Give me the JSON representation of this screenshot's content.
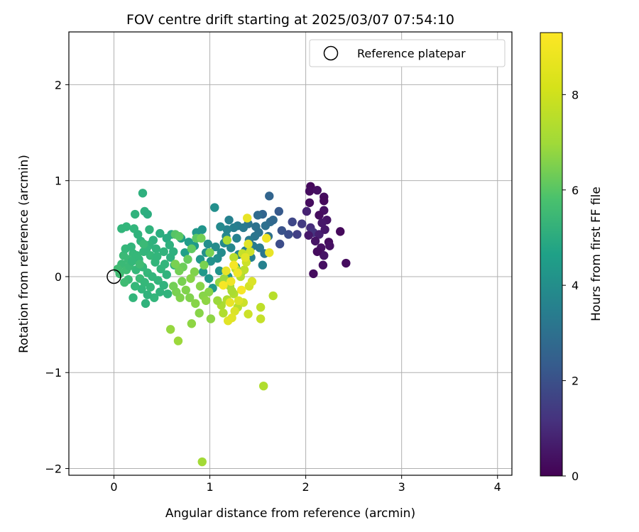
{
  "chart_data": {
    "type": "scatter",
    "title": "FOV centre drift starting at 2025/03/07 07:54:10",
    "xlabel": "Angular distance from reference (arcmin)",
    "ylabel": "Rotation from reference (arcmin)",
    "xlim": [
      -0.47,
      4.15
    ],
    "ylim": [
      -2.07,
      2.55
    ],
    "xticks": [
      0,
      1,
      2,
      3,
      4
    ],
    "yticks": [
      -2,
      -1,
      0,
      1,
      2
    ],
    "xtick_labels": [
      "0",
      "1",
      "2",
      "3",
      "4"
    ],
    "ytick_labels": [
      "−2",
      "−1",
      "0",
      "1",
      "2"
    ],
    "grid": true,
    "legend": {
      "placement": "top-right",
      "entries": [
        "Reference platepar"
      ]
    },
    "reference_point": {
      "x": 0,
      "y": 0,
      "label": "Reference platepar"
    },
    "colorbar": {
      "label": "Hours from first FF file",
      "colormap": "viridis",
      "range": [
        0,
        9.3
      ],
      "ticks": [
        0,
        2,
        4,
        6,
        8
      ],
      "tick_labels": [
        "0",
        "2",
        "4",
        "6",
        "8"
      ]
    },
    "points": [
      {
        "x": 2.05,
        "y": 0.94,
        "c": 0.2
      },
      {
        "x": 2.04,
        "y": 0.89,
        "c": 0.3
      },
      {
        "x": 2.12,
        "y": 0.9,
        "c": 0.4
      },
      {
        "x": 2.19,
        "y": 0.83,
        "c": 0.3
      },
      {
        "x": 2.19,
        "y": 0.79,
        "c": 0.2
      },
      {
        "x": 2.04,
        "y": 0.77,
        "c": 0.3
      },
      {
        "x": 2.19,
        "y": 0.69,
        "c": 0.4
      },
      {
        "x": 2.14,
        "y": 0.64,
        "c": 0.3
      },
      {
        "x": 2.22,
        "y": 0.59,
        "c": 0.5
      },
      {
        "x": 2.17,
        "y": 0.56,
        "c": 0.6
      },
      {
        "x": 2.01,
        "y": 0.68,
        "c": 0.9
      },
      {
        "x": 2.05,
        "y": 0.51,
        "c": 1.2
      },
      {
        "x": 2.08,
        "y": 0.46,
        "c": 1.4
      },
      {
        "x": 2.14,
        "y": 0.44,
        "c": 0.8
      },
      {
        "x": 2.2,
        "y": 0.49,
        "c": 0.6
      },
      {
        "x": 2.1,
        "y": 0.37,
        "c": 0.5
      },
      {
        "x": 2.16,
        "y": 0.3,
        "c": 0.4
      },
      {
        "x": 2.24,
        "y": 0.36,
        "c": 0.3
      },
      {
        "x": 2.25,
        "y": 0.32,
        "c": 0.4
      },
      {
        "x": 2.19,
        "y": 0.22,
        "c": 0.5
      },
      {
        "x": 2.12,
        "y": 0.26,
        "c": 0.3
      },
      {
        "x": 2.18,
        "y": 0.12,
        "c": 0.4
      },
      {
        "x": 2.08,
        "y": 0.03,
        "c": 0.3
      },
      {
        "x": 2.36,
        "y": 0.47,
        "c": 0.2
      },
      {
        "x": 2.42,
        "y": 0.14,
        "c": 0.3
      },
      {
        "x": 2.03,
        "y": 0.43,
        "c": 0.6
      },
      {
        "x": 1.96,
        "y": 0.55,
        "c": 1.6
      },
      {
        "x": 1.91,
        "y": 0.44,
        "c": 1.8
      },
      {
        "x": 1.86,
        "y": 0.57,
        "c": 2.0
      },
      {
        "x": 1.82,
        "y": 0.44,
        "c": 2.2
      },
      {
        "x": 1.75,
        "y": 0.48,
        "c": 2.4
      },
      {
        "x": 1.73,
        "y": 0.34,
        "c": 2.2
      },
      {
        "x": 1.72,
        "y": 0.68,
        "c": 2.6
      },
      {
        "x": 1.62,
        "y": 0.84,
        "c": 3.0
      },
      {
        "x": 1.55,
        "y": 0.65,
        "c": 3.0
      },
      {
        "x": 1.5,
        "y": 0.64,
        "c": 3.2
      },
      {
        "x": 1.58,
        "y": 0.53,
        "c": 3.4
      },
      {
        "x": 1.63,
        "y": 0.57,
        "c": 3.3
      },
      {
        "x": 1.66,
        "y": 0.59,
        "c": 3.1
      },
      {
        "x": 1.51,
        "y": 0.46,
        "c": 3.5
      },
      {
        "x": 1.47,
        "y": 0.42,
        "c": 3.6
      },
      {
        "x": 1.4,
        "y": 0.55,
        "c": 3.6
      },
      {
        "x": 1.35,
        "y": 0.51,
        "c": 3.8
      },
      {
        "x": 1.29,
        "y": 0.53,
        "c": 3.9
      },
      {
        "x": 1.25,
        "y": 0.51,
        "c": 4.0
      },
      {
        "x": 1.2,
        "y": 0.59,
        "c": 4.1
      },
      {
        "x": 1.18,
        "y": 0.49,
        "c": 4.2
      },
      {
        "x": 1.11,
        "y": 0.52,
        "c": 4.4
      },
      {
        "x": 1.05,
        "y": 0.72,
        "c": 4.6
      },
      {
        "x": 1.45,
        "y": 0.32,
        "c": 3.9
      },
      {
        "x": 1.52,
        "y": 0.3,
        "c": 3.8
      },
      {
        "x": 1.57,
        "y": 0.24,
        "c": 3.7
      },
      {
        "x": 1.61,
        "y": 0.42,
        "c": 3.4
      },
      {
        "x": 1.43,
        "y": 0.2,
        "c": 4.0
      },
      {
        "x": 1.37,
        "y": 0.27,
        "c": 4.1
      },
      {
        "x": 1.3,
        "y": 0.23,
        "c": 4.2
      },
      {
        "x": 1.22,
        "y": 0.3,
        "c": 4.3
      },
      {
        "x": 1.15,
        "y": 0.35,
        "c": 4.4
      },
      {
        "x": 1.12,
        "y": 0.25,
        "c": 4.5
      },
      {
        "x": 1.08,
        "y": 0.19,
        "c": 4.6
      },
      {
        "x": 1.01,
        "y": 0.16,
        "c": 4.7
      },
      {
        "x": 0.96,
        "y": 0.25,
        "c": 4.7
      },
      {
        "x": 0.98,
        "y": 0.34,
        "c": 4.6
      },
      {
        "x": 0.92,
        "y": 0.49,
        "c": 4.8
      },
      {
        "x": 0.86,
        "y": 0.46,
        "c": 4.9
      },
      {
        "x": 0.84,
        "y": 0.32,
        "c": 5.0
      },
      {
        "x": 0.78,
        "y": 0.36,
        "c": 5.1
      },
      {
        "x": 0.74,
        "y": 0.25,
        "c": 5.2
      },
      {
        "x": 0.7,
        "y": 0.4,
        "c": 5.2
      },
      {
        "x": 1.27,
        "y": 0.1,
        "c": 4.5
      },
      {
        "x": 1.33,
        "y": 0.05,
        "c": 4.3
      },
      {
        "x": 1.55,
        "y": 0.12,
        "c": 4.1
      },
      {
        "x": 1.19,
        "y": 0.0,
        "c": 4.7
      },
      {
        "x": 1.1,
        "y": 0.06,
        "c": 4.8
      },
      {
        "x": 0.99,
        "y": -0.02,
        "c": 4.9
      },
      {
        "x": 0.93,
        "y": 0.05,
        "c": 5.0
      },
      {
        "x": 1.03,
        "y": -0.12,
        "c": 5.0
      },
      {
        "x": 1.41,
        "y": 0.38,
        "c": 3.8
      },
      {
        "x": 1.48,
        "y": 0.52,
        "c": 3.5
      },
      {
        "x": 1.28,
        "y": 0.4,
        "c": 4.1
      },
      {
        "x": 1.17,
        "y": 0.42,
        "c": 4.3
      },
      {
        "x": 0.9,
        "y": 0.18,
        "c": 4.9
      },
      {
        "x": 1.06,
        "y": 0.31,
        "c": 4.5
      },
      {
        "x": 0.6,
        "y": 0.44,
        "c": 5.6
      },
      {
        "x": 0.55,
        "y": 0.4,
        "c": 5.7
      },
      {
        "x": 0.48,
        "y": 0.45,
        "c": 5.8
      },
      {
        "x": 0.41,
        "y": 0.38,
        "c": 5.9
      },
      {
        "x": 0.37,
        "y": 0.49,
        "c": 6.0
      },
      {
        "x": 0.32,
        "y": 0.68,
        "c": 5.9
      },
      {
        "x": 0.35,
        "y": 0.65,
        "c": 5.8
      },
      {
        "x": 0.3,
        "y": 0.87,
        "c": 5.9
      },
      {
        "x": 0.22,
        "y": 0.65,
        "c": 6.0
      },
      {
        "x": 0.21,
        "y": 0.5,
        "c": 6.1
      },
      {
        "x": 0.13,
        "y": 0.52,
        "c": 6.1
      },
      {
        "x": 0.08,
        "y": 0.5,
        "c": 6.1
      },
      {
        "x": 0.25,
        "y": 0.44,
        "c": 6.0
      },
      {
        "x": 0.28,
        "y": 0.37,
        "c": 6.0
      },
      {
        "x": 0.37,
        "y": 0.33,
        "c": 6.0
      },
      {
        "x": 0.44,
        "y": 0.29,
        "c": 6.0
      },
      {
        "x": 0.52,
        "y": 0.26,
        "c": 6.0
      },
      {
        "x": 0.59,
        "y": 0.2,
        "c": 5.9
      },
      {
        "x": 0.63,
        "y": 0.12,
        "c": 5.9
      },
      {
        "x": 0.55,
        "y": 0.02,
        "c": 6.0
      },
      {
        "x": 0.49,
        "y": 0.08,
        "c": 6.1
      },
      {
        "x": 0.43,
        "y": 0.15,
        "c": 6.1
      },
      {
        "x": 0.38,
        "y": 0.22,
        "c": 6.2
      },
      {
        "x": 0.31,
        "y": 0.26,
        "c": 6.1
      },
      {
        "x": 0.26,
        "y": 0.18,
        "c": 6.1
      },
      {
        "x": 0.2,
        "y": 0.24,
        "c": 6.2
      },
      {
        "x": 0.15,
        "y": 0.18,
        "c": 6.3
      },
      {
        "x": 0.1,
        "y": 0.22,
        "c": 6.3
      },
      {
        "x": 0.08,
        "y": 0.13,
        "c": 6.3
      },
      {
        "x": 0.12,
        "y": 0.29,
        "c": 6.2
      },
      {
        "x": 0.18,
        "y": 0.31,
        "c": 6.1
      },
      {
        "x": 0.23,
        "y": 0.07,
        "c": 6.2
      },
      {
        "x": 0.3,
        "y": 0.1,
        "c": 6.2
      },
      {
        "x": 0.35,
        "y": 0.04,
        "c": 6.2
      },
      {
        "x": 0.4,
        "y": 0.0,
        "c": 6.1
      },
      {
        "x": 0.46,
        "y": -0.04,
        "c": 6.1
      },
      {
        "x": 0.52,
        "y": -0.09,
        "c": 6.0
      },
      {
        "x": 0.56,
        "y": -0.18,
        "c": 6.0
      },
      {
        "x": 0.48,
        "y": -0.16,
        "c": 6.0
      },
      {
        "x": 0.42,
        "y": -0.22,
        "c": 6.1
      },
      {
        "x": 0.35,
        "y": -0.19,
        "c": 6.0
      },
      {
        "x": 0.33,
        "y": -0.28,
        "c": 6.0
      },
      {
        "x": 0.29,
        "y": -0.13,
        "c": 6.1
      },
      {
        "x": 0.22,
        "y": -0.1,
        "c": 6.2
      },
      {
        "x": 0.2,
        "y": -0.22,
        "c": 6.1
      },
      {
        "x": 0.15,
        "y": -0.03,
        "c": 6.3
      },
      {
        "x": 0.11,
        "y": -0.06,
        "c": 6.4
      },
      {
        "x": 0.06,
        "y": 0.03,
        "c": 6.4
      },
      {
        "x": 0.04,
        "y": 0.08,
        "c": 6.4
      },
      {
        "x": 0.13,
        "y": 0.07,
        "c": 6.4
      },
      {
        "x": 0.24,
        "y": 0.22,
        "c": 6.2
      },
      {
        "x": 0.34,
        "y": 0.29,
        "c": 6.1
      },
      {
        "x": 0.45,
        "y": 0.21,
        "c": 6.1
      },
      {
        "x": 0.53,
        "y": 0.13,
        "c": 6.1
      },
      {
        "x": 0.27,
        "y": -0.02,
        "c": 6.3
      },
      {
        "x": 0.32,
        "y": -0.06,
        "c": 6.2
      },
      {
        "x": 0.38,
        "y": -0.11,
        "c": 6.2
      },
      {
        "x": 0.16,
        "y": 0.11,
        "c": 6.3
      },
      {
        "x": 0.19,
        "y": 0.16,
        "c": 6.2
      },
      {
        "x": 0.27,
        "y": 0.13,
        "c": 6.4
      },
      {
        "x": 0.62,
        "y": 0.26,
        "c": 5.9
      },
      {
        "x": 0.58,
        "y": 0.33,
        "c": 5.9
      },
      {
        "x": 0.31,
        "y": 0.34,
        "c": 6.3
      },
      {
        "x": 0.64,
        "y": 0.44,
        "c": 6.8
      },
      {
        "x": 0.68,
        "y": 0.42,
        "c": 6.9
      },
      {
        "x": 0.81,
        "y": 0.29,
        "c": 7.0
      },
      {
        "x": 0.86,
        "y": 0.4,
        "c": 6.9
      },
      {
        "x": 0.77,
        "y": 0.18,
        "c": 7.1
      },
      {
        "x": 0.72,
        "y": 0.1,
        "c": 7.2
      },
      {
        "x": 0.68,
        "y": 0.06,
        "c": 7.3
      },
      {
        "x": 0.64,
        "y": 0.13,
        "c": 7.4
      },
      {
        "x": 0.71,
        "y": -0.05,
        "c": 7.4
      },
      {
        "x": 0.75,
        "y": -0.14,
        "c": 7.5
      },
      {
        "x": 0.69,
        "y": -0.22,
        "c": 7.5
      },
      {
        "x": 0.65,
        "y": -0.16,
        "c": 7.4
      },
      {
        "x": 0.62,
        "y": -0.1,
        "c": 7.3
      },
      {
        "x": 0.79,
        "y": -0.22,
        "c": 7.5
      },
      {
        "x": 0.85,
        "y": -0.28,
        "c": 7.6
      },
      {
        "x": 0.89,
        "y": -0.38,
        "c": 7.6
      },
      {
        "x": 0.81,
        "y": -0.49,
        "c": 7.7
      },
      {
        "x": 0.59,
        "y": -0.55,
        "c": 7.8
      },
      {
        "x": 0.67,
        "y": -0.67,
        "c": 7.9
      },
      {
        "x": 0.93,
        "y": -0.2,
        "c": 7.6
      },
      {
        "x": 0.99,
        "y": -0.16,
        "c": 7.6
      },
      {
        "x": 1.01,
        "y": -0.44,
        "c": 7.7
      },
      {
        "x": 0.96,
        "y": -0.25,
        "c": 7.7
      },
      {
        "x": 0.9,
        "y": -0.1,
        "c": 7.6
      },
      {
        "x": 0.94,
        "y": 0.12,
        "c": 7.4
      },
      {
        "x": 1.0,
        "y": 0.25,
        "c": 7.4
      },
      {
        "x": 0.91,
        "y": 0.4,
        "c": 7.3
      },
      {
        "x": 0.84,
        "y": 0.05,
        "c": 7.5
      },
      {
        "x": 0.8,
        "y": -0.02,
        "c": 7.6
      },
      {
        "x": 1.1,
        "y": -0.06,
        "c": 7.8
      },
      {
        "x": 1.15,
        "y": -0.02,
        "c": 7.9
      },
      {
        "x": 1.21,
        "y": -0.1,
        "c": 8.0
      },
      {
        "x": 1.25,
        "y": -0.18,
        "c": 8.2
      },
      {
        "x": 1.18,
        "y": -0.24,
        "c": 8.2
      },
      {
        "x": 1.12,
        "y": -0.3,
        "c": 8.1
      },
      {
        "x": 1.08,
        "y": -0.25,
        "c": 7.9
      },
      {
        "x": 1.14,
        "y": -0.38,
        "c": 8.2
      },
      {
        "x": 1.29,
        "y": -0.32,
        "c": 8.3
      },
      {
        "x": 1.23,
        "y": -0.15,
        "c": 8.1
      },
      {
        "x": 1.32,
        "y": 0.0,
        "c": 8.3
      },
      {
        "x": 1.36,
        "y": 0.07,
        "c": 8.4
      },
      {
        "x": 1.27,
        "y": 0.08,
        "c": 8.3
      },
      {
        "x": 1.34,
        "y": 0.24,
        "c": 8.5
      },
      {
        "x": 1.42,
        "y": 0.26,
        "c": 8.6
      },
      {
        "x": 1.38,
        "y": 0.15,
        "c": 8.6
      },
      {
        "x": 1.18,
        "y": 0.38,
        "c": 8.1
      },
      {
        "x": 1.25,
        "y": 0.2,
        "c": 8.3
      },
      {
        "x": 1.56,
        "y": -1.14,
        "c": 8.2
      },
      {
        "x": 0.92,
        "y": -1.93,
        "c": 8.0
      },
      {
        "x": 1.66,
        "y": -0.2,
        "c": 8.3
      },
      {
        "x": 1.53,
        "y": -0.32,
        "c": 8.4
      },
      {
        "x": 1.53,
        "y": -0.44,
        "c": 8.5
      },
      {
        "x": 1.4,
        "y": -0.39,
        "c": 8.6
      },
      {
        "x": 1.35,
        "y": -0.27,
        "c": 8.6
      },
      {
        "x": 1.41,
        "y": -0.1,
        "c": 8.7
      },
      {
        "x": 1.44,
        "y": -0.05,
        "c": 8.8
      },
      {
        "x": 1.3,
        "y": -0.25,
        "c": 8.8
      },
      {
        "x": 1.26,
        "y": -0.36,
        "c": 8.8
      },
      {
        "x": 1.23,
        "y": -0.43,
        "c": 8.9
      },
      {
        "x": 1.19,
        "y": -0.46,
        "c": 8.9
      },
      {
        "x": 1.37,
        "y": 0.2,
        "c": 8.9
      },
      {
        "x": 1.4,
        "y": 0.34,
        "c": 8.9
      },
      {
        "x": 1.39,
        "y": 0.61,
        "c": 9.0
      },
      {
        "x": 1.59,
        "y": 0.4,
        "c": 9.1
      },
      {
        "x": 1.62,
        "y": 0.25,
        "c": 9.0
      },
      {
        "x": 1.17,
        "y": 0.06,
        "c": 9.0
      },
      {
        "x": 1.22,
        "y": -0.05,
        "c": 9.1
      },
      {
        "x": 1.29,
        "y": 0.04,
        "c": 9.1
      },
      {
        "x": 1.33,
        "y": -0.14,
        "c": 9.2
      },
      {
        "x": 1.21,
        "y": -0.27,
        "c": 9.0
      },
      {
        "x": 1.14,
        "y": -0.09,
        "c": 9.2
      },
      {
        "x": 1.25,
        "y": 0.12,
        "c": 9.2
      }
    ]
  }
}
